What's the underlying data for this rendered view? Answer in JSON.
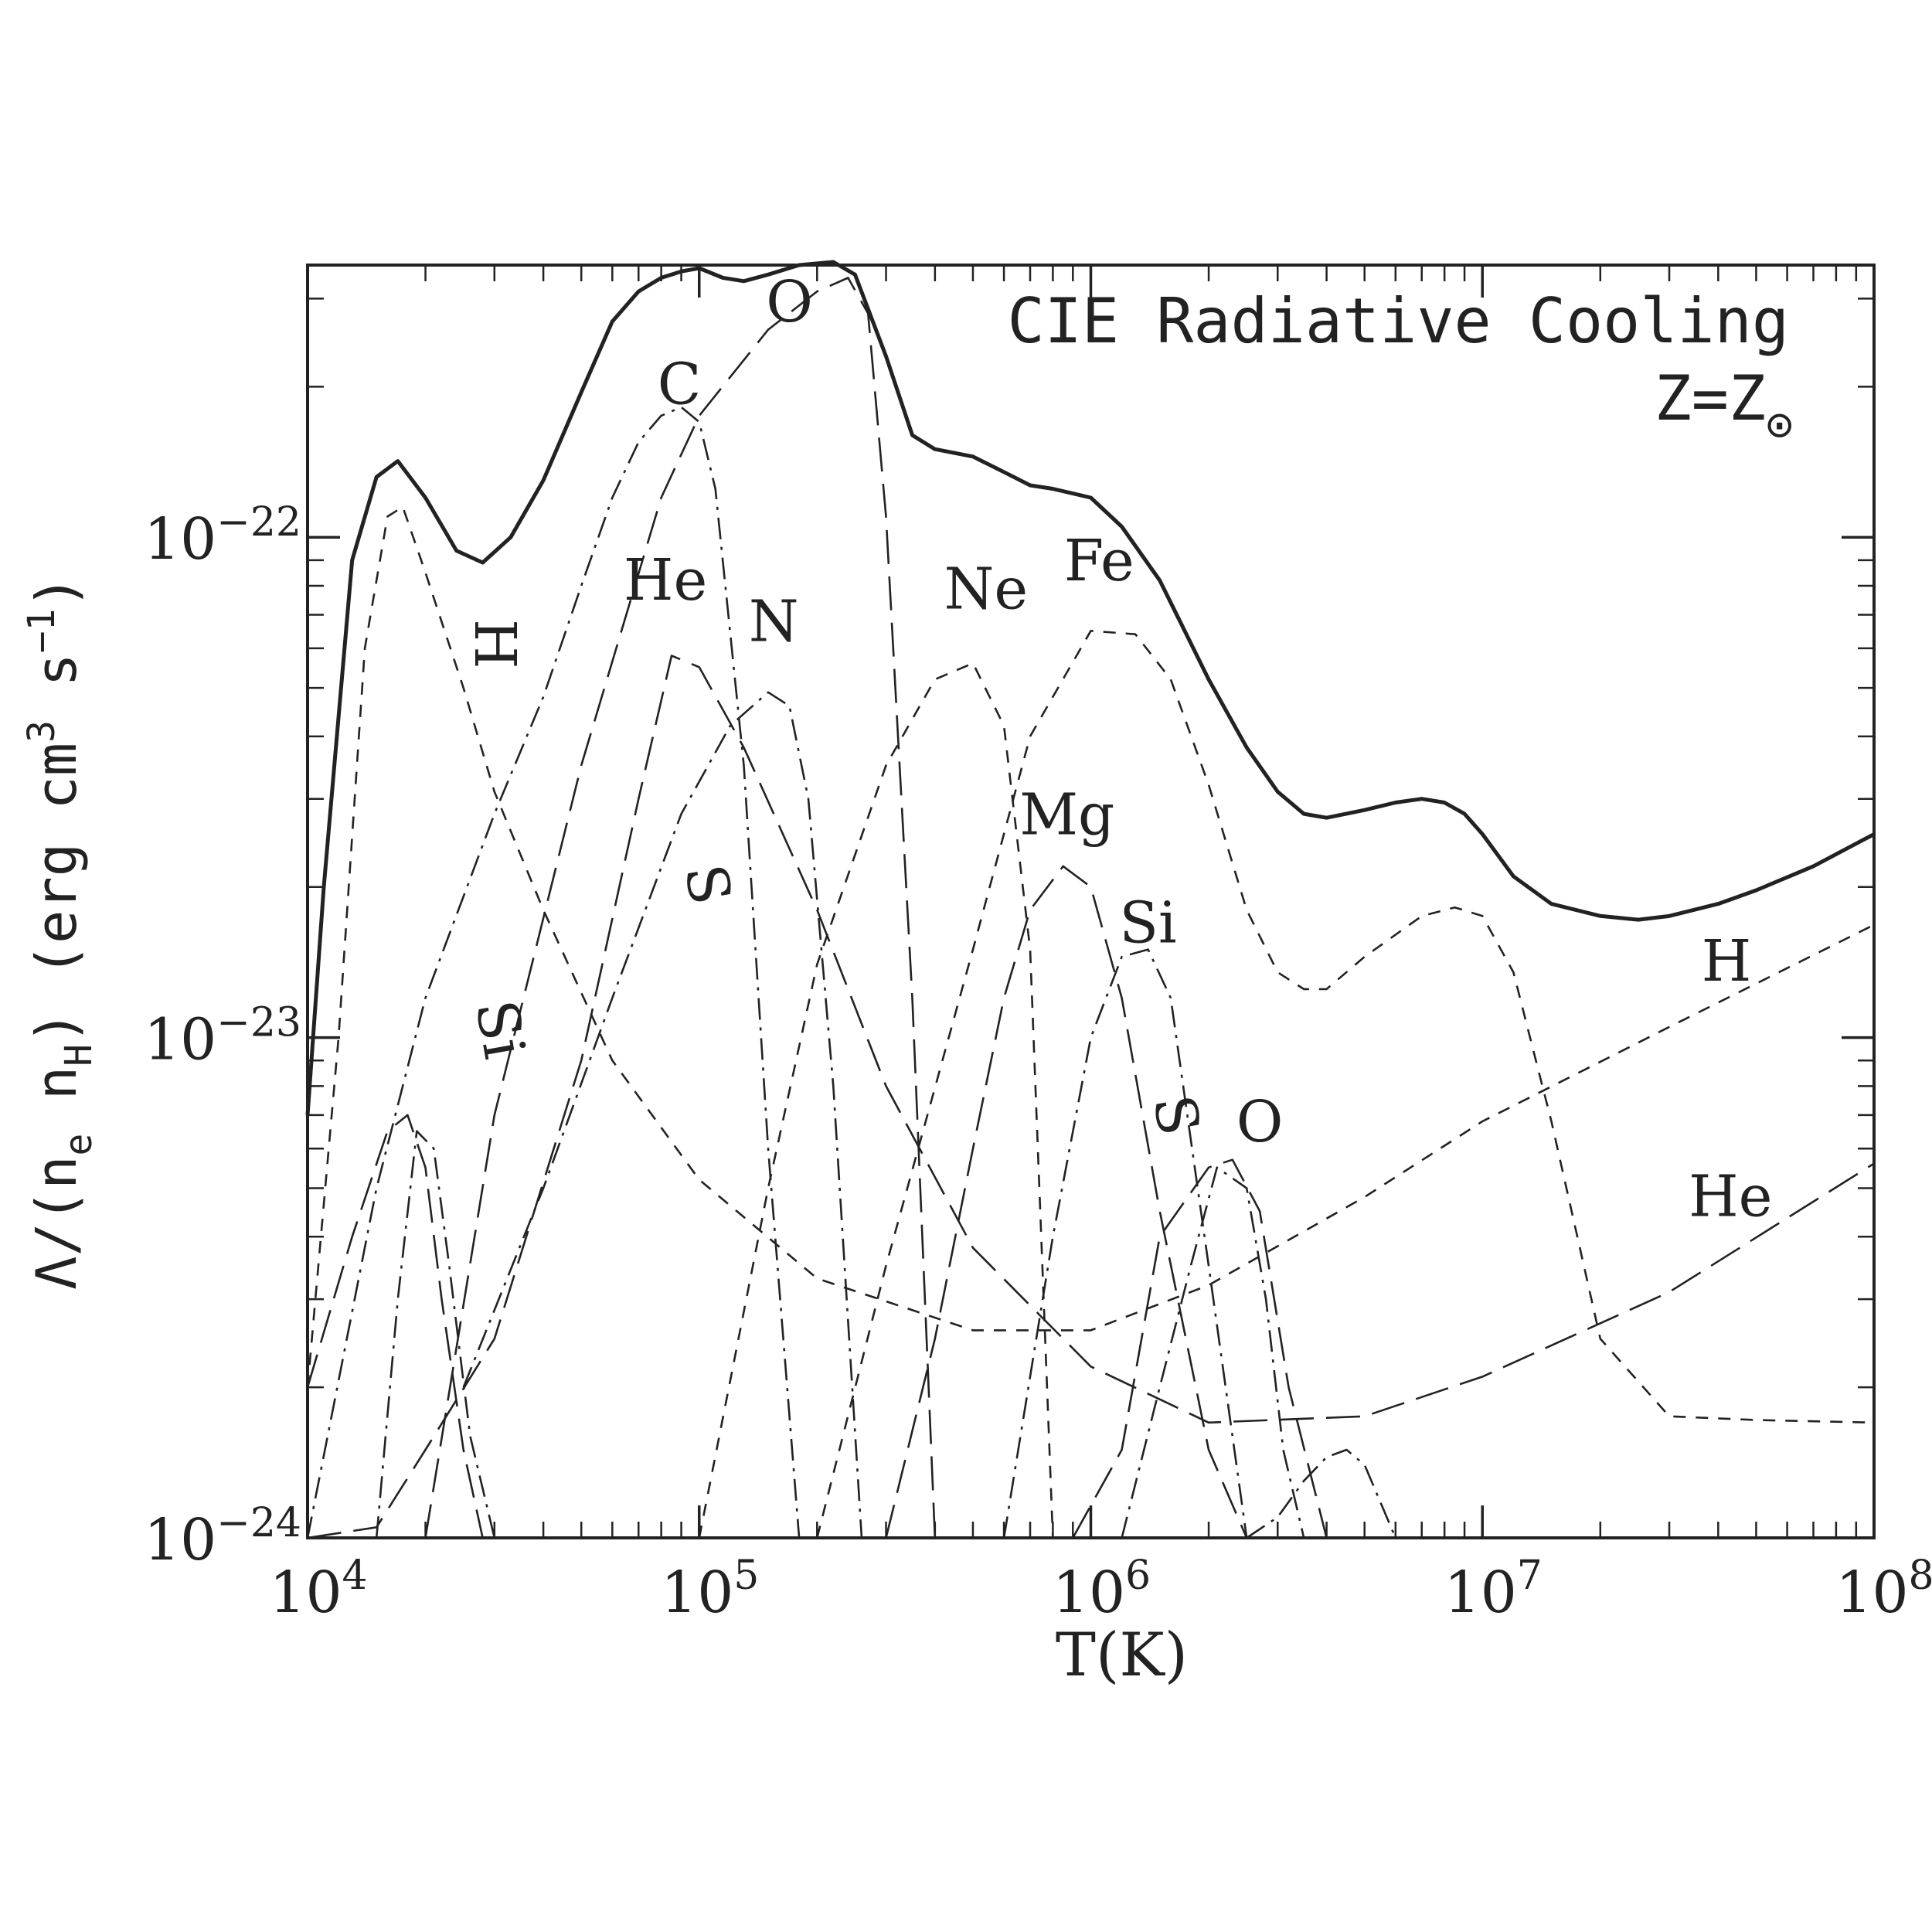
{
  "chart_data": {
    "type": "line",
    "title": "CIE Radiative Cooling",
    "subtitle_main": "Z=Z",
    "subtitle_sub": "⊙",
    "xlabel": "T(K)",
    "ylabel": "Λ/(n_e n_H) (erg cm³ s⁻¹)",
    "ylabel_parts": {
      "lambda": "Λ/(n",
      "e": "e",
      "mid": " n",
      "h": "H",
      "units": ") (erg cm",
      "cube": "3",
      "s": " s",
      "inv": "−1",
      "close": ")"
    },
    "x_scale": "log",
    "y_scale": "log",
    "xlim": [
      10000,
      100000000
    ],
    "ylim": [
      1e-24,
      3.5e-22
    ],
    "x_ticks": [
      {
        "value": 10000,
        "base": "10",
        "exp": "4"
      },
      {
        "value": 100000,
        "base": "10",
        "exp": "5"
      },
      {
        "value": 1000000,
        "base": "10",
        "exp": "6"
      },
      {
        "value": 10000000,
        "base": "10",
        "exp": "7"
      },
      {
        "value": 100000000,
        "base": "10",
        "exp": "8"
      }
    ],
    "y_ticks": [
      {
        "value": 1e-24,
        "base": "10",
        "exp": "−24"
      },
      {
        "value": 1e-23,
        "base": "10",
        "exp": "−23"
      },
      {
        "value": 1e-22,
        "base": "10",
        "exp": "−22"
      }
    ],
    "grid": false,
    "series": [
      {
        "style": "solid",
        "x": [
          10000,
          11000,
          13000,
          15000,
          17000,
          20000,
          24000,
          28000,
          33000,
          40000,
          50000,
          60000,
          70000,
          80000,
          90000,
          100000,
          115000,
          130000,
          150000,
          180000,
          220000,
          250000,
          300000,
          350000,
          400000,
          500000,
          600000,
          700000,
          800000,
          1000000,
          1200000,
          1500000,
          2000000,
          2500000,
          3000000,
          3500000,
          4000000,
          5000000,
          6000000,
          7000000,
          8000000,
          9000000,
          10000000,
          12000000,
          15000000,
          20000000,
          25000000,
          30000000,
          40000000,
          50000000,
          70000000,
          100000000
        ],
        "y": [
          7e-24,
          2e-23,
          9e-23,
          1.32e-22,
          1.42e-22,
          1.2e-22,
          9.4e-23,
          8.9e-23,
          1e-22,
          1.3e-22,
          1.95e-22,
          2.7e-22,
          3.1e-22,
          3.3e-22,
          3.4e-22,
          3.45e-22,
          3.3e-22,
          3.25e-22,
          3.35e-22,
          3.5e-22,
          3.55e-22,
          3.35e-22,
          2.3e-22,
          1.6e-22,
          1.5e-22,
          1.45e-22,
          1.35e-22,
          1.27e-22,
          1.25e-22,
          1.2e-22,
          1.05e-22,
          8.2e-23,
          5.2e-23,
          3.8e-23,
          3.1e-23,
          2.8e-23,
          2.75e-23,
          2.85e-23,
          2.95e-23,
          3e-23,
          2.95e-23,
          2.8e-23,
          2.55e-23,
          2.1e-23,
          1.85e-23,
          1.75e-23,
          1.72e-23,
          1.75e-23,
          1.85e-23,
          1.97e-23,
          2.2e-23,
          2.55e-23
        ]
      },
      {
        "style": "short-dash",
        "x": [
          10000,
          12000,
          14000,
          16000,
          17500,
          20000,
          25000,
          30000,
          40000,
          60000,
          100000,
          200000,
          500000,
          1000000,
          2000000,
          5000000,
          10000000,
          30000000,
          100000000
        ],
        "y": [
          2e-24,
          1e-23,
          6e-23,
          1.1e-22,
          1.15e-22,
          8.5e-23,
          5e-23,
          3.1e-23,
          1.8e-23,
          9e-24,
          5.2e-24,
          3.3e-24,
          2.6e-24,
          2.6e-24,
          3.2e-24,
          4.8e-24,
          6.8e-24,
          1.05e-23,
          1.68e-23
        ]
      },
      {
        "style": "long-dash",
        "x": [
          10000,
          15000,
          20000,
          30000,
          50000,
          70000,
          85000,
          100000,
          130000,
          200000,
          300000,
          500000,
          1000000,
          2000000,
          5000000,
          10000000,
          30000000,
          100000000
        ],
        "y": [
          1e-24,
          1.05e-24,
          1.5e-24,
          2.5e-24,
          9e-24,
          3e-23,
          5.8e-23,
          5.5e-23,
          3.8e-23,
          1.8e-23,
          8e-24,
          3.8e-24,
          2.2e-24,
          1.7e-24,
          1.75e-24,
          2.1e-24,
          3.1e-24,
          5.6e-24
        ]
      },
      {
        "style": "dot-dash",
        "x": [
          10000,
          15000,
          20000,
          30000,
          40000,
          50000,
          60000,
          70000,
          80000,
          90000,
          100000,
          110000,
          130000,
          150000,
          180000
        ],
        "y": [
          1e-24,
          5e-24,
          1.2e-23,
          2.8e-23,
          4.8e-23,
          8e-23,
          1.2e-22,
          1.55e-22,
          1.75e-22,
          1.82e-22,
          1.7e-22,
          1.25e-22,
          3.5e-23,
          6e-24,
          1e-24
        ]
      },
      {
        "style": "long-dash",
        "x": [
          20000,
          30000,
          50000,
          80000,
          100000,
          150000,
          200000,
          240000,
          270000,
          300000,
          350000,
          400000
        ],
        "y": [
          1e-24,
          7e-24,
          3.5e-23,
          1.2e-22,
          1.75e-22,
          2.6e-22,
          3.1e-22,
          3.3e-22,
          2.8e-22,
          1.1e-22,
          1.2e-23,
          1e-24
        ]
      },
      {
        "style": "dot-dash",
        "x": [
          25000,
          40000,
          60000,
          90000,
          120000,
          150000,
          170000,
          190000,
          220000,
          260000
        ],
        "y": [
          2e-24,
          5e-24,
          1.2e-23,
          2.8e-23,
          4.2e-23,
          4.9e-23,
          4.6e-23,
          3e-23,
          8e-24,
          1e-24
        ]
      },
      {
        "style": "short-dash",
        "x": [
          100000,
          150000,
          200000,
          300000,
          400000,
          500000,
          600000,
          700000,
          800000
        ],
        "y": [
          1e-24,
          5e-24,
          1.4e-23,
          3.5e-23,
          5.2e-23,
          5.6e-23,
          4.2e-23,
          1.5e-23,
          1e-24
        ]
      },
      {
        "style": "short-dash",
        "x": [
          200000,
          300000,
          500000,
          700000,
          1000000,
          1300000,
          1600000,
          2000000,
          2500000,
          3000000,
          3500000,
          4000000,
          5000000,
          7000000,
          8500000,
          10000000,
          12000000,
          15000000,
          20000000,
          30000000,
          50000000,
          100000000
        ],
        "y": [
          1e-24,
          3.5e-24,
          1.5e-23,
          4e-23,
          6.5e-23,
          6.4e-23,
          5.2e-23,
          3.2e-23,
          1.8e-23,
          1.35e-23,
          1.25e-23,
          1.25e-23,
          1.45e-23,
          1.75e-23,
          1.82e-23,
          1.75e-23,
          1.35e-23,
          6.8e-24,
          2.5e-24,
          1.75e-24,
          1.72e-24,
          1.7e-24
        ]
      },
      {
        "style": "long-dash",
        "x": [
          300000,
          400000,
          500000,
          600000,
          700000,
          850000,
          1000000,
          1200000,
          1500000,
          2000000,
          2500000,
          3000000
        ],
        "y": [
          1e-24,
          2.5e-24,
          6e-24,
          1.2e-23,
          1.8e-23,
          2.2e-23,
          2e-23,
          1.2e-23,
          4.5e-24,
          1.5e-24,
          1e-24,
          1e-24
        ]
      },
      {
        "style": "dot-dash",
        "x": [
          600000,
          800000,
          1000000,
          1200000,
          1400000,
          1600000,
          2000000,
          2500000
        ],
        "y": [
          1e-24,
          4e-24,
          1e-23,
          1.45e-23,
          1.5e-23,
          1.2e-23,
          3.5e-24,
          1e-24
        ]
      },
      {
        "style": "long-dash",
        "x": [
          900000,
          1200000,
          1500000,
          2000000,
          2300000,
          2700000,
          3200000,
          4000000
        ],
        "y": [
          1e-24,
          1.5e-24,
          4e-24,
          5.5e-24,
          5.7e-24,
          4.5e-24,
          2e-24,
          1e-24
        ]
      },
      {
        "style": "dot-dash",
        "x": [
          1200000,
          1500000,
          1800000,
          2100000,
          2500000,
          2800000,
          3100000,
          3500000
        ],
        "y": [
          1e-24,
          2e-24,
          3.5e-24,
          5.5e-24,
          5e-24,
          3e-24,
          1.5e-24,
          1e-24
        ]
      },
      {
        "style": "dot-dash",
        "x": [
          2500000,
          3000000,
          3500000,
          4000000,
          4500000,
          5000000,
          6000000
        ],
        "y": [
          1e-24,
          1.1e-24,
          1.3e-24,
          1.45e-24,
          1.5e-24,
          1.4e-24,
          1e-24
        ]
      },
      {
        "style": "long-dash",
        "x": [
          10000,
          13000,
          16000,
          18000,
          20000,
          22000,
          25000,
          28000
        ],
        "y": [
          2e-24,
          4e-24,
          6.5e-24,
          7e-24,
          5.5e-24,
          3e-24,
          1.5e-24,
          1e-24
        ]
      },
      {
        "style": "dot-dash",
        "x": [
          15000,
          17000,
          19000,
          21000,
          23000,
          26000,
          30000
        ],
        "y": [
          1e-24,
          3e-24,
          6.5e-24,
          6e-24,
          3.5e-24,
          1.6e-24,
          1e-24
        ]
      }
    ],
    "annotations": [
      {
        "text": "O",
        "x": 170000,
        "y": 2.7e-22
      },
      {
        "text": "C",
        "x": 89000,
        "y": 1.85e-22
      },
      {
        "text": "H",
        "x": 30000,
        "y": 5.6e-23,
        "rotate": 90
      },
      {
        "text": "He",
        "x": 82000,
        "y": 7.5e-23
      },
      {
        "text": "N",
        "x": 155000,
        "y": 6.2e-23
      },
      {
        "text": "Ne",
        "x": 540000,
        "y": 7.2e-23
      },
      {
        "text": "Fe",
        "x": 1050000,
        "y": 8.2e-23
      },
      {
        "text": "Mg",
        "x": 870000,
        "y": 2.55e-23
      },
      {
        "text": "S",
        "x": 105000,
        "y": 1.85e-23,
        "rotate": 80
      },
      {
        "text": "Si",
        "x": 1400000,
        "y": 1.55e-23
      },
      {
        "text": "Si",
        "x": 31000,
        "y": 9.5e-24,
        "rotate": 80
      },
      {
        "text": "H",
        "x": 42000000,
        "y": 1.3e-23
      },
      {
        "text": "S",
        "x": 1650000,
        "y": 6.4e-24,
        "rotate": 80
      },
      {
        "text": "O",
        "x": 2700000,
        "y": 6.2e-24
      },
      {
        "text": "He",
        "x": 43000000,
        "y": 4.4e-24
      }
    ]
  }
}
